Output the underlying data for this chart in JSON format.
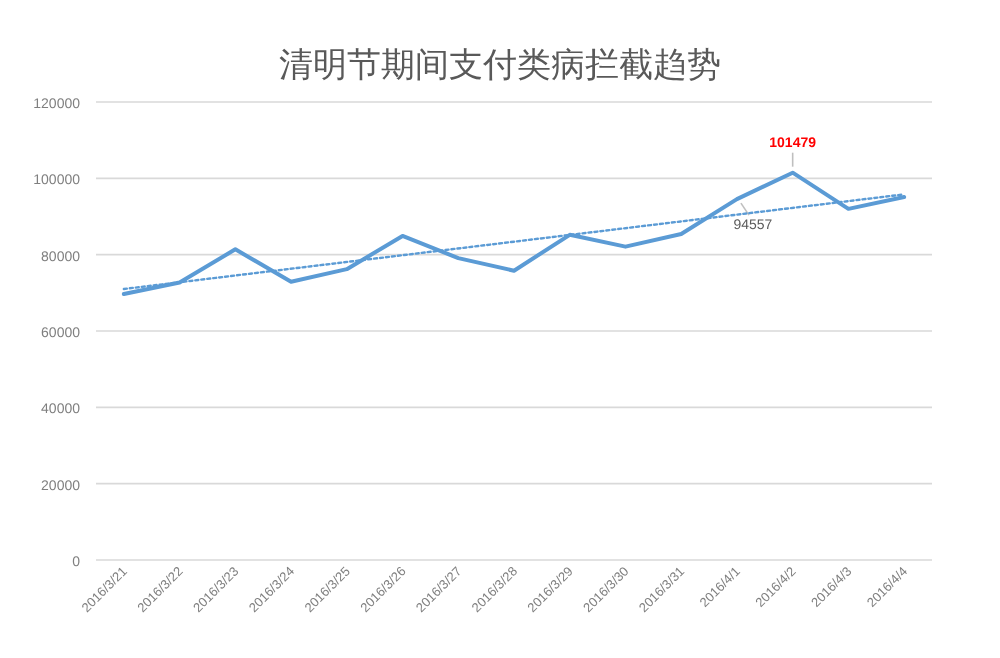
{
  "chart_data": {
    "type": "line",
    "title": "清明节期间支付类病拦截趋势",
    "categories": [
      "2016/3/21",
      "2016/3/22",
      "2016/3/23",
      "2016/3/24",
      "2016/3/25",
      "2016/3/26",
      "2016/3/27",
      "2016/3/28",
      "2016/3/29",
      "2016/3/30",
      "2016/3/31",
      "2016/4/1",
      "2016/4/2",
      "2016/4/3",
      "2016/4/4"
    ],
    "series": [
      {
        "color": "#5b9bd5",
        "values": [
          69700,
          72700,
          81400,
          72900,
          76200,
          84900,
          79100,
          75800,
          85200,
          82100,
          85400,
          94557,
          101479,
          92000,
          95100
        ],
        "value_labels": [
          null,
          null,
          null,
          null,
          null,
          null,
          null,
          null,
          null,
          null,
          null,
          "94557",
          "101479",
          null,
          null
        ]
      },
      {
        "type": "line",
        "color": "#5b9bd5",
        "line_style": "dotted",
        "x": [
          "2016/3/21",
          "2016/4/4"
        ],
        "values": [
          71000,
          95800
        ]
      }
    ],
    "ylim": [
      0,
      120000
    ],
    "yticks": [
      0,
      20000,
      40000,
      60000,
      80000,
      100000,
      120000
    ],
    "grid": "y",
    "marker": "none",
    "line_style": "solid"
  }
}
